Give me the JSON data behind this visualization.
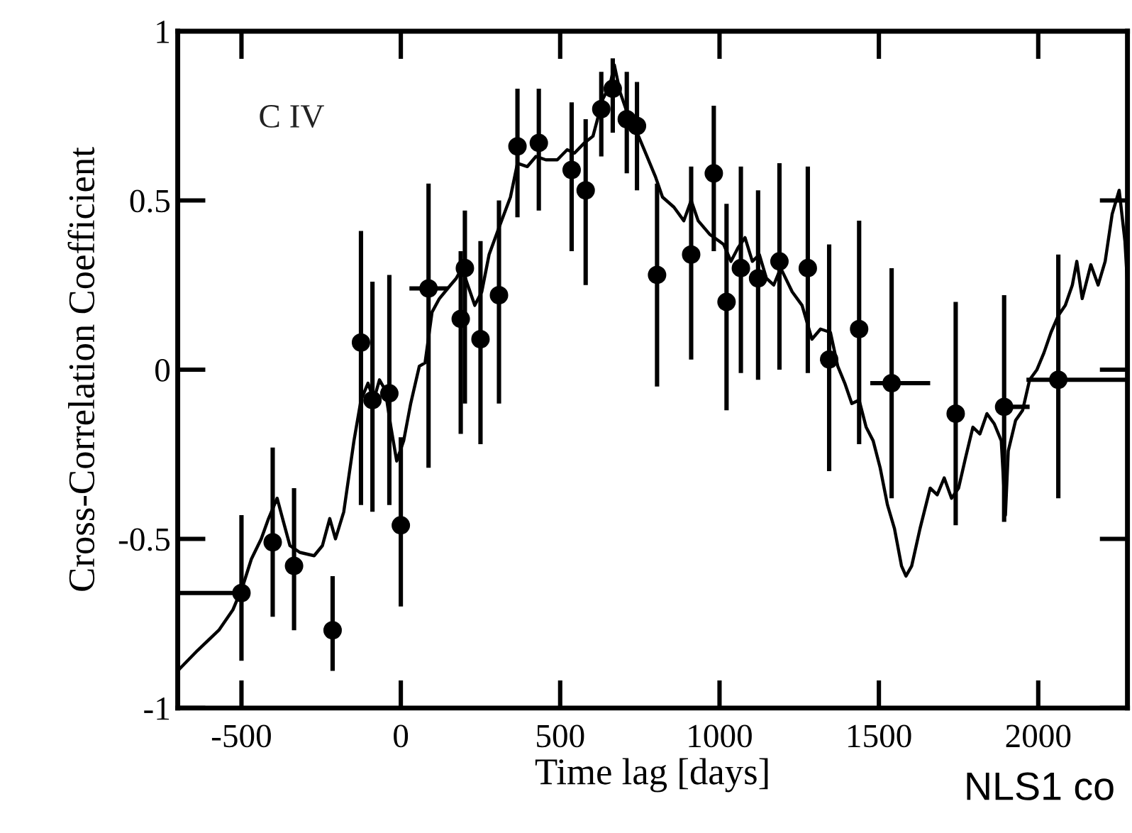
{
  "chart_data": {
    "type": "scatter",
    "xlabel": "Time lag [days]",
    "ylabel": "Cross-Correlation Coefficient",
    "annotations": [
      "C IV",
      "NLS1 co"
    ],
    "xlim": [
      -700,
      2280
    ],
    "ylim": [
      -1,
      1
    ],
    "xticks": [
      -500,
      0,
      500,
      1000,
      1500,
      2000
    ],
    "yticks": [
      -1,
      -0.5,
      0,
      0.5,
      1
    ],
    "grid": false,
    "legend": false,
    "series": [
      {
        "type": "line",
        "color": "#000000",
        "marker": "none",
        "line_style": "solid",
        "x": [
          -700,
          -638,
          -571,
          -527,
          -496,
          -469,
          -438,
          -415,
          -388,
          -371,
          -348,
          -317,
          -272,
          -246,
          -223,
          -205,
          -179,
          -147,
          -125,
          -103,
          -85,
          -67,
          -49,
          -31,
          -13,
          9,
          31,
          58,
          76,
          98,
          121,
          156,
          174,
          192,
          210,
          232,
          254,
          277,
          308,
          344,
          366,
          397,
          424,
          455,
          491,
          522,
          545,
          576,
          603,
          634,
          656,
          670,
          688,
          710,
          737,
          768,
          799,
          821,
          857,
          888,
          911,
          933,
          969,
          1013,
          1036,
          1058,
          1080,
          1103,
          1125,
          1147,
          1170,
          1192,
          1228,
          1259,
          1290,
          1317,
          1348,
          1371,
          1393,
          1415,
          1438,
          1460,
          1482,
          1504,
          1527,
          1549,
          1571,
          1585,
          1603,
          1629,
          1661,
          1683,
          1705,
          1728,
          1750,
          1772,
          1795,
          1817,
          1839,
          1862,
          1884,
          1897,
          1906,
          1929,
          1951,
          1973,
          1996,
          2018,
          2040,
          2063,
          2085,
          2107,
          2121,
          2138,
          2165,
          2188,
          2210,
          2232,
          2254,
          2272,
          2280
        ],
        "values": [
          -0.89,
          -0.83,
          -0.77,
          -0.71,
          -0.64,
          -0.56,
          -0.5,
          -0.44,
          -0.38,
          -0.44,
          -0.52,
          -0.54,
          -0.55,
          -0.52,
          -0.44,
          -0.5,
          -0.42,
          -0.21,
          -0.09,
          -0.04,
          -0.09,
          -0.03,
          -0.06,
          -0.17,
          -0.27,
          -0.21,
          -0.1,
          0.01,
          0.02,
          0.17,
          0.21,
          0.25,
          0.27,
          0.3,
          0.25,
          0.19,
          0.23,
          0.34,
          0.42,
          0.51,
          0.61,
          0.6,
          0.63,
          0.62,
          0.62,
          0.65,
          0.64,
          0.67,
          0.69,
          0.8,
          0.84,
          0.9,
          0.82,
          0.76,
          0.71,
          0.64,
          0.57,
          0.51,
          0.48,
          0.44,
          0.5,
          0.44,
          0.4,
          0.37,
          0.32,
          0.36,
          0.39,
          0.32,
          0.34,
          0.27,
          0.25,
          0.3,
          0.23,
          0.19,
          0.09,
          0.12,
          0.11,
          0.01,
          -0.04,
          -0.1,
          -0.09,
          -0.17,
          -0.21,
          -0.29,
          -0.4,
          -0.47,
          -0.58,
          -0.61,
          -0.58,
          -0.47,
          -0.35,
          -0.37,
          -0.32,
          -0.38,
          -0.35,
          -0.26,
          -0.17,
          -0.19,
          -0.13,
          -0.16,
          -0.21,
          -0.43,
          -0.24,
          -0.15,
          -0.12,
          -0.03,
          0.0,
          0.05,
          0.11,
          0.16,
          0.19,
          0.25,
          0.32,
          0.21,
          0.31,
          0.25,
          0.32,
          0.46,
          0.53,
          0.38,
          0.25
        ]
      },
      {
        "color": "#000000",
        "marker": "circle",
        "x": [
          -500,
          -402,
          -335,
          -214,
          -125,
          -89,
          -36,
          0,
          87,
          201,
          188,
          250,
          308,
          366,
          433,
          536,
          580,
          629,
          665,
          709,
          741,
          804,
          911,
          982,
          1022,
          1067,
          1121,
          1188,
          1277,
          1344,
          1438,
          1540,
          1741,
          1893,
          2063
        ],
        "values": [
          -0.66,
          -0.51,
          -0.58,
          -0.77,
          0.08,
          -0.09,
          -0.07,
          -0.46,
          0.24,
          0.3,
          0.15,
          0.09,
          0.22,
          0.66,
          0.67,
          0.59,
          0.53,
          0.77,
          0.83,
          0.74,
          0.72,
          0.28,
          0.34,
          0.58,
          0.2,
          0.3,
          0.27,
          0.32,
          0.3,
          0.03,
          0.12,
          -0.04,
          -0.13,
          -0.11,
          -0.03
        ],
        "errors": [
          [
            -0.86,
            -0.43
          ],
          [
            -0.73,
            -0.23
          ],
          [
            -0.77,
            -0.35
          ],
          [
            -0.89,
            -0.61
          ],
          [
            -0.4,
            0.41
          ],
          [
            -0.42,
            0.26
          ],
          [
            -0.4,
            0.28
          ],
          [
            -0.7,
            -0.2
          ],
          [
            -0.29,
            0.55
          ],
          [
            -0.1,
            0.47
          ],
          [
            -0.19,
            0.35
          ],
          [
            -0.22,
            0.38
          ],
          [
            -0.1,
            0.5
          ],
          [
            0.45,
            0.83
          ],
          [
            0.47,
            0.83
          ],
          [
            0.35,
            0.79
          ],
          [
            0.25,
            0.74
          ],
          [
            0.63,
            0.88
          ],
          [
            0.7,
            0.92
          ],
          [
            0.58,
            0.88
          ],
          [
            0.53,
            0.85
          ],
          [
            -0.05,
            0.55
          ],
          [
            0.03,
            0.6
          ],
          [
            0.35,
            0.78
          ],
          [
            -0.12,
            0.49
          ],
          [
            -0.01,
            0.6
          ],
          [
            -0.03,
            0.53
          ],
          [
            0.0,
            0.61
          ],
          [
            -0.01,
            0.6
          ],
          [
            -0.3,
            0.37
          ],
          [
            -0.22,
            0.44
          ],
          [
            -0.38,
            0.3
          ],
          [
            -0.46,
            0.2
          ],
          [
            -0.45,
            0.22
          ],
          [
            -0.38,
            0.34
          ]
        ],
        "xerrors": [
          [
            -700,
            -500
          ],
          null,
          null,
          null,
          null,
          null,
          null,
          null,
          [
            27,
            147
          ],
          null,
          null,
          null,
          null,
          null,
          null,
          null,
          null,
          null,
          null,
          null,
          null,
          null,
          [
            891,
            931
          ],
          null,
          null,
          null,
          null,
          null,
          null,
          null,
          null,
          [
            1473,
            1661
          ],
          null,
          [
            1873,
            1973
          ],
          [
            1963,
            2280
          ]
        ]
      }
    ]
  }
}
